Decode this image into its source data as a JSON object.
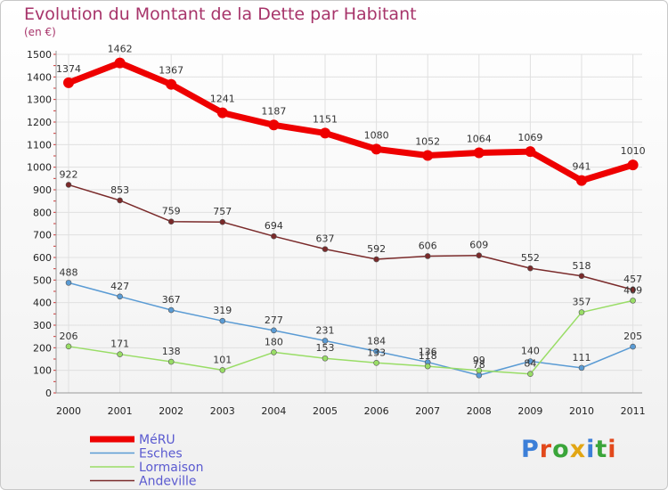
{
  "title": "Evolution du Montant de la Dette par Habitant",
  "unit_label": "(en €)",
  "logo": {
    "text": "Proxiti",
    "letters": [
      "P",
      "r",
      "o",
      "x",
      "i",
      "t",
      "i"
    ],
    "colors": [
      "#3c7fd8",
      "#e2491c",
      "#3aa53a",
      "#e2a614",
      "#3c7fd8",
      "#3aa53a",
      "#e2491c"
    ]
  },
  "chart_data": {
    "type": "line",
    "title": "Evolution du Montant de la Dette par Habitant",
    "ylabel": "(en €)",
    "xlabel": "",
    "x": [
      "2000",
      "2001",
      "2002",
      "2003",
      "2004",
      "2005",
      "2006",
      "2007",
      "2008",
      "2009",
      "2010",
      "2011"
    ],
    "ylim": [
      0,
      1500
    ],
    "yticks": [
      0,
      100,
      200,
      300,
      400,
      500,
      600,
      700,
      800,
      900,
      1000,
      1100,
      1200,
      1300,
      1400,
      1500
    ],
    "grid": true,
    "legend_position": "bottom-left",
    "series": [
      {
        "name": "MéRU",
        "color": "#ee0000",
        "values": [
          1374,
          1462,
          1367,
          1241,
          1187,
          1151,
          1080,
          1052,
          1064,
          1069,
          941,
          1010
        ]
      },
      {
        "name": "Esches",
        "color": "#5a9bd4",
        "values": [
          488,
          427,
          367,
          319,
          277,
          231,
          184,
          136,
          78,
          140,
          111,
          205
        ]
      },
      {
        "name": "Lormaison",
        "color": "#99dd66",
        "values": [
          206,
          171,
          138,
          101,
          180,
          153,
          133,
          118,
          99,
          84,
          357,
          409
        ]
      },
      {
        "name": "Andeville",
        "color": "#7a2a2a",
        "values": [
          922,
          853,
          759,
          757,
          694,
          637,
          592,
          606,
          609,
          552,
          518,
          457
        ]
      }
    ]
  }
}
